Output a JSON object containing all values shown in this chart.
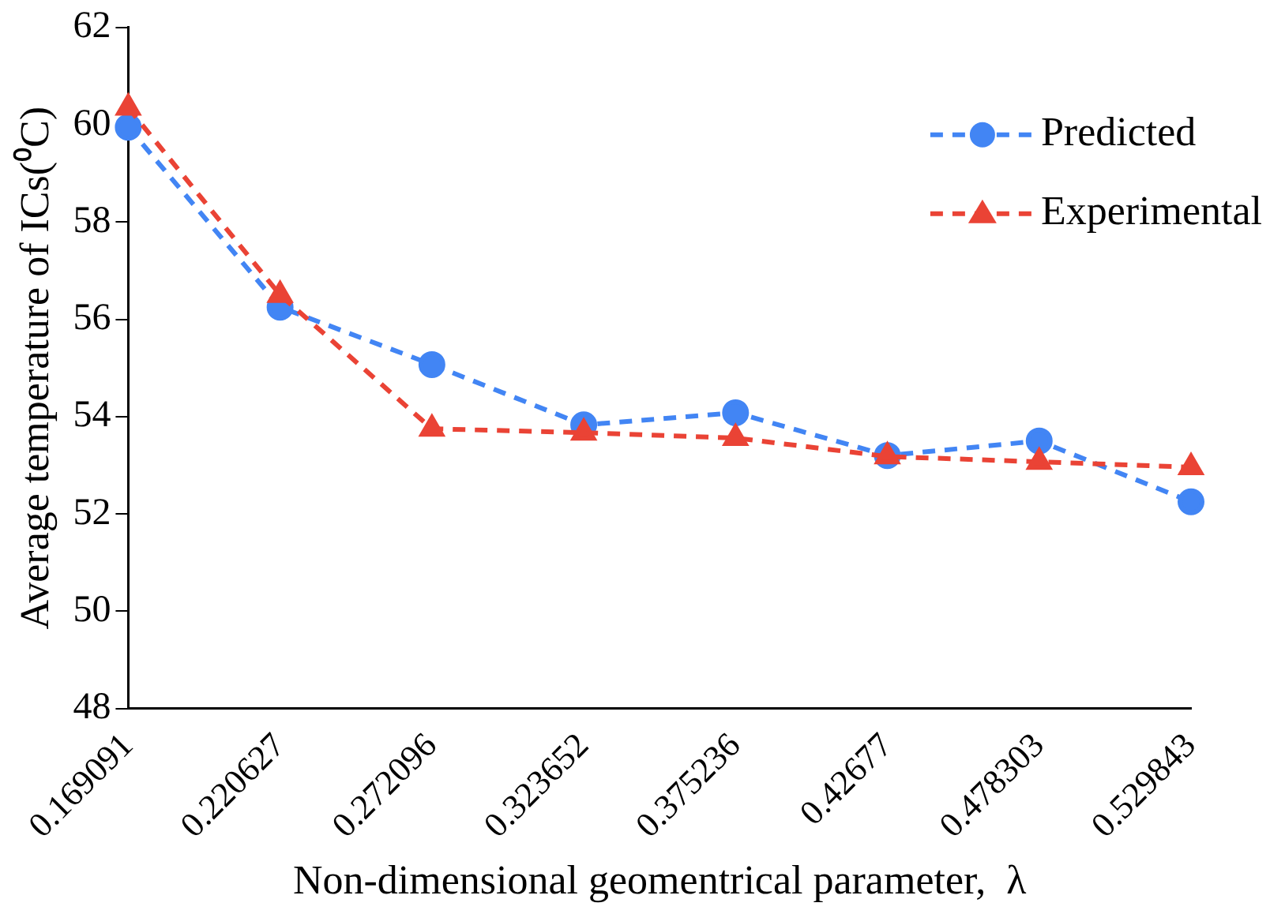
{
  "chart_data": {
    "type": "line",
    "xlabel": "Non-dimensional geomentrical parameter,  λ",
    "ylabel": "Average temperature of ICs(⁰C)",
    "categories": [
      "0.169091",
      "0.220627",
      "0.272096",
      "0.323652",
      "0.375236",
      "0.42677",
      "0.478303",
      "0.529843"
    ],
    "series": [
      {
        "name": "Predicted",
        "color": "#4285f4",
        "marker": "circle",
        "values": [
          59.95,
          56.25,
          55.07,
          53.83,
          54.08,
          53.2,
          53.5,
          52.25
        ]
      },
      {
        "name": "Experimental",
        "color": "#ea4335",
        "marker": "triangle",
        "values": [
          60.35,
          56.5,
          53.75,
          53.67,
          53.56,
          53.18,
          53.07,
          52.96
        ]
      }
    ],
    "ylim": [
      48,
      62
    ],
    "yticks": [
      48,
      50,
      52,
      54,
      56,
      58,
      60,
      62
    ],
    "grid": false,
    "legend": "top right",
    "line_style": "dashed"
  }
}
